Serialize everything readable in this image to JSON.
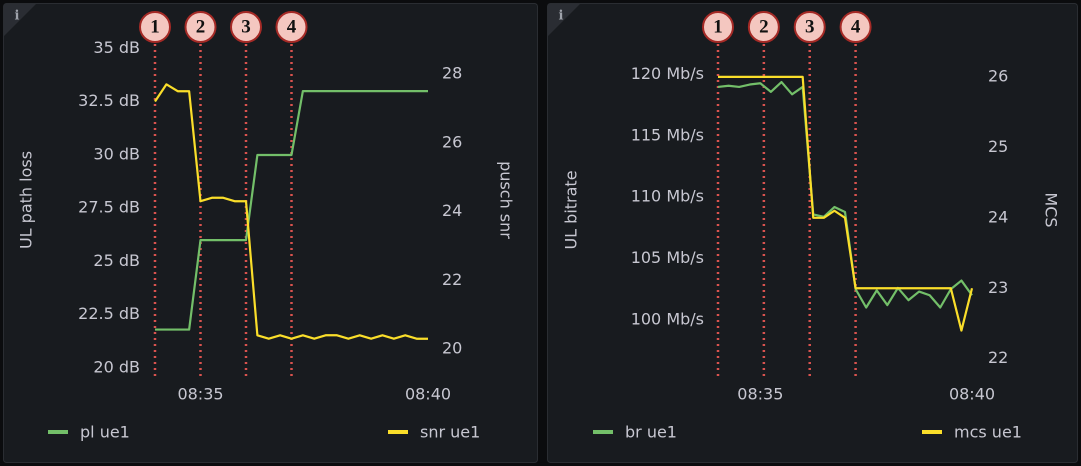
{
  "chart_data": [
    {
      "type": "line",
      "info": "i",
      "x": [
        "08:34:00",
        "08:34:15",
        "08:34:30",
        "08:34:45",
        "08:35:00",
        "08:35:15",
        "08:35:30",
        "08:35:45",
        "08:36:00",
        "08:36:15",
        "08:36:30",
        "08:36:45",
        "08:37:00",
        "08:37:15",
        "08:37:30",
        "08:37:45",
        "08:38:00",
        "08:38:15",
        "08:38:30",
        "08:38:45",
        "08:39:00",
        "08:39:15",
        "08:39:30",
        "08:39:45",
        "08:40:00"
      ],
      "xlim": [
        "08:34:00",
        "08:40:00"
      ],
      "xticks": [
        "08:35",
        "08:40"
      ],
      "ylabel": "UL path loss",
      "y2label": "pusch snr",
      "ylim": [
        19.9,
        35.4
      ],
      "yticks": [
        {
          "value": 20,
          "label": "20 dB"
        },
        {
          "value": 22.5,
          "label": "22.5 dB"
        },
        {
          "value": 25,
          "label": "25 dB"
        },
        {
          "value": 27.5,
          "label": "27.5 dB"
        },
        {
          "value": 30,
          "label": "30 dB"
        },
        {
          "value": 32.5,
          "label": "32.5 dB"
        },
        {
          "value": 35,
          "label": "35 dB"
        }
      ],
      "y2lim": [
        19.39,
        28.99
      ],
      "y2ticks": [
        20,
        22,
        24,
        26,
        28
      ],
      "grid": false,
      "series": [
        {
          "name": "pl ue1",
          "color": "#73bf69",
          "values": [
            21.8,
            21.8,
            21.8,
            21.8,
            26,
            26,
            26,
            26,
            26,
            30,
            30,
            30,
            30,
            33,
            33,
            33,
            33,
            33,
            33,
            33,
            33,
            33,
            33,
            33,
            33
          ]
        },
        {
          "name": "snr ue1",
          "color": "#fade2a",
          "axis": "y2",
          "values": [
            27.2,
            27.7,
            27.5,
            27.5,
            24.3,
            24.4,
            24.4,
            24.3,
            24.3,
            20.4,
            20.3,
            20.4,
            20.3,
            20.4,
            20.3,
            20.4,
            20.4,
            20.3,
            20.4,
            20.3,
            20.4,
            20.3,
            20.4,
            20.3,
            20.3
          ]
        }
      ],
      "annotations": [
        {
          "label": "1",
          "x": "08:34:00"
        },
        {
          "label": "2",
          "x": "08:35:00"
        },
        {
          "label": "3",
          "x": "08:36:00"
        },
        {
          "label": "4",
          "x": "08:37:00"
        }
      ]
    },
    {
      "type": "line",
      "info": "i",
      "x": [
        "08:34:00",
        "08:34:15",
        "08:34:30",
        "08:34:45",
        "08:35:00",
        "08:35:15",
        "08:35:30",
        "08:35:45",
        "08:36:00",
        "08:36:15",
        "08:36:30",
        "08:36:45",
        "08:37:00",
        "08:37:15",
        "08:37:30",
        "08:37:45",
        "08:38:00",
        "08:38:15",
        "08:38:30",
        "08:38:45",
        "08:39:00",
        "08:39:15",
        "08:39:30",
        "08:39:45",
        "08:40:00"
      ],
      "xlim": [
        "08:34:00",
        "08:40:00"
      ],
      "xticks": [
        "08:35",
        "08:40"
      ],
      "ylabel": "UL bitrate",
      "y2label": "MCS",
      "ylim": [
        95.9,
        121.2
      ],
      "yticks": [
        {
          "value": 100,
          "label": "100 Mb/s"
        },
        {
          "value": 105,
          "label": "105 Mb/s"
        },
        {
          "value": 110,
          "label": "110 Mb/s"
        },
        {
          "value": 115,
          "label": "115 Mb/s"
        },
        {
          "value": 120,
          "label": "120 Mb/s"
        }
      ],
      "y2lim": [
        21.84,
        26.24
      ],
      "y2ticks": [
        22,
        23,
        24,
        25,
        26
      ],
      "grid": false,
      "series": [
        {
          "name": "br ue1",
          "color": "#73bf69",
          "values": [
            119.0,
            119.1,
            119.0,
            119.2,
            119.3,
            118.6,
            119.4,
            118.4,
            119.0,
            108.6,
            108.4,
            109.2,
            108.8,
            102.5,
            101.0,
            102.4,
            101.2,
            102.6,
            101.6,
            102.3,
            102.0,
            101.0,
            102.5,
            103.2,
            102.0
          ]
        },
        {
          "name": "mcs ue1",
          "color": "#fade2a",
          "axis": "y2",
          "values": [
            26,
            26,
            26,
            26,
            26,
            26,
            26,
            26,
            26,
            24,
            24,
            24.1,
            24,
            23,
            23,
            23,
            23,
            23,
            23,
            23,
            23,
            23,
            23,
            22.4,
            23
          ]
        }
      ],
      "annotations": [
        {
          "label": "1",
          "x": "08:34:00"
        },
        {
          "label": "2",
          "x": "08:35:05"
        },
        {
          "label": "3",
          "x": "08:36:10"
        },
        {
          "label": "4",
          "x": "08:37:15"
        }
      ]
    }
  ]
}
